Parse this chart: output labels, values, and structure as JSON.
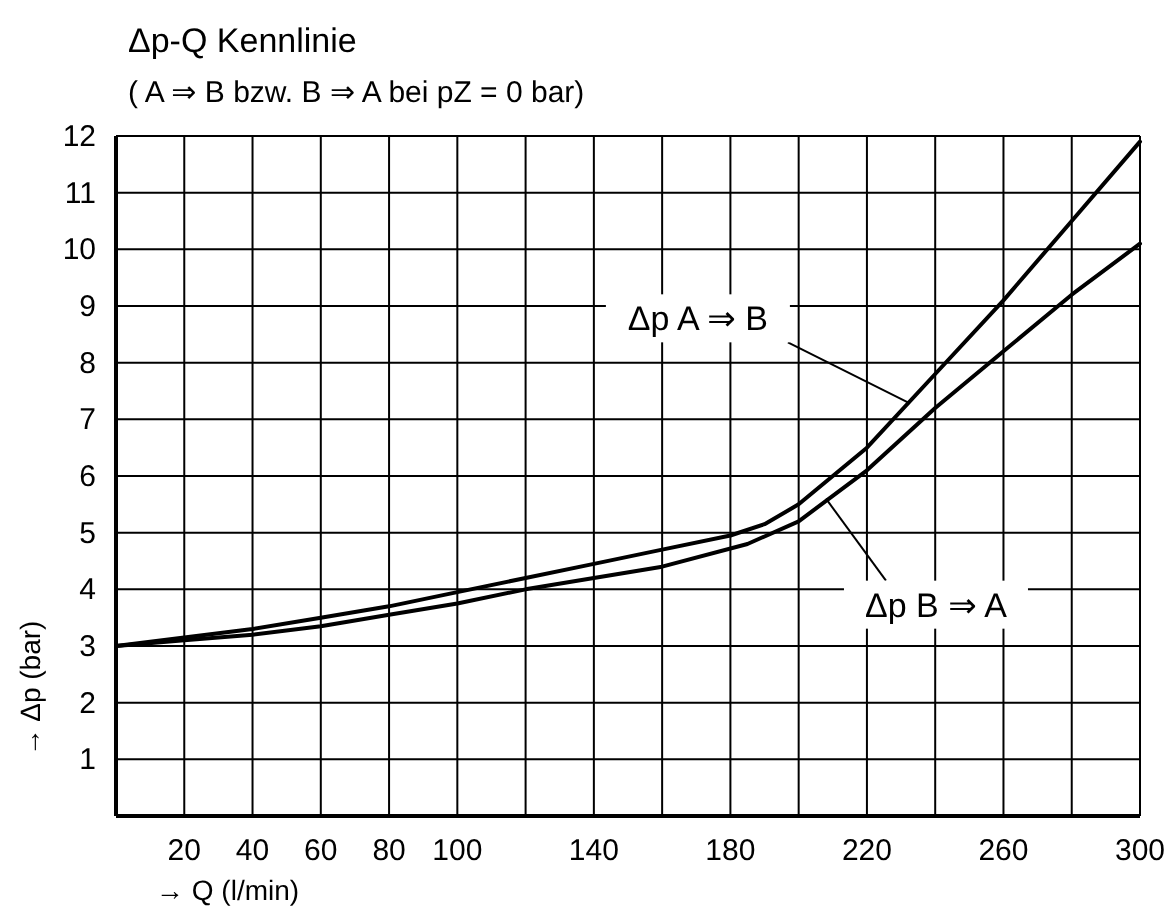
{
  "chart_data": {
    "type": "line",
    "title": "Δp-Q Kennlinie",
    "subtitle": "( A ⇒ B bzw. B ⇒ A bei pZ = 0 bar)",
    "xlabel": "→ Q (l/min)",
    "ylabel": "→ Δp (bar)",
    "xlim": [
      0,
      300
    ],
    "xticks": [
      20,
      40,
      60,
      80,
      100,
      {
        "value": 120,
        "label": null
      },
      140,
      {
        "value": 160,
        "label": null
      },
      180,
      {
        "value": 200,
        "label": null
      },
      220,
      {
        "value": 240,
        "label": null
      },
      260,
      {
        "value": 280,
        "label": null
      },
      300
    ],
    "ylim": [
      0,
      12
    ],
    "yticks": [
      1,
      2,
      3,
      4,
      5,
      6,
      7,
      8,
      9,
      10,
      11,
      12
    ],
    "grid": true,
    "line_style": "solid",
    "series": [
      {
        "color": "#000000",
        "x": [
          0,
          20,
          40,
          60,
          80,
          100,
          120,
          140,
          160,
          180,
          190,
          200,
          220,
          240,
          260,
          280,
          300
        ],
        "values": [
          3,
          3.15,
          3.3,
          3.5,
          3.7,
          3.95,
          4.2,
          4.45,
          4.7,
          4.95,
          5.15,
          5.5,
          6.5,
          7.8,
          9.1,
          10.5,
          11.9
        ]
      },
      {
        "color": "#000000",
        "x": [
          0,
          20,
          40,
          60,
          80,
          100,
          120,
          140,
          160,
          185,
          200,
          220,
          240,
          260,
          280,
          300
        ],
        "values": [
          3,
          3.1,
          3.2,
          3.35,
          3.55,
          3.75,
          4,
          4.2,
          4.4,
          4.8,
          5.2,
          6.1,
          7.2,
          8.2,
          9.2,
          10.1
        ]
      }
    ],
    "annotations": [
      {
        "text": "Δp A ⇒ B",
        "x": 232,
        "y": 7.3
      },
      {
        "text": "Δp B ⇒ A",
        "x": 208,
        "y": 5.6
      }
    ]
  }
}
